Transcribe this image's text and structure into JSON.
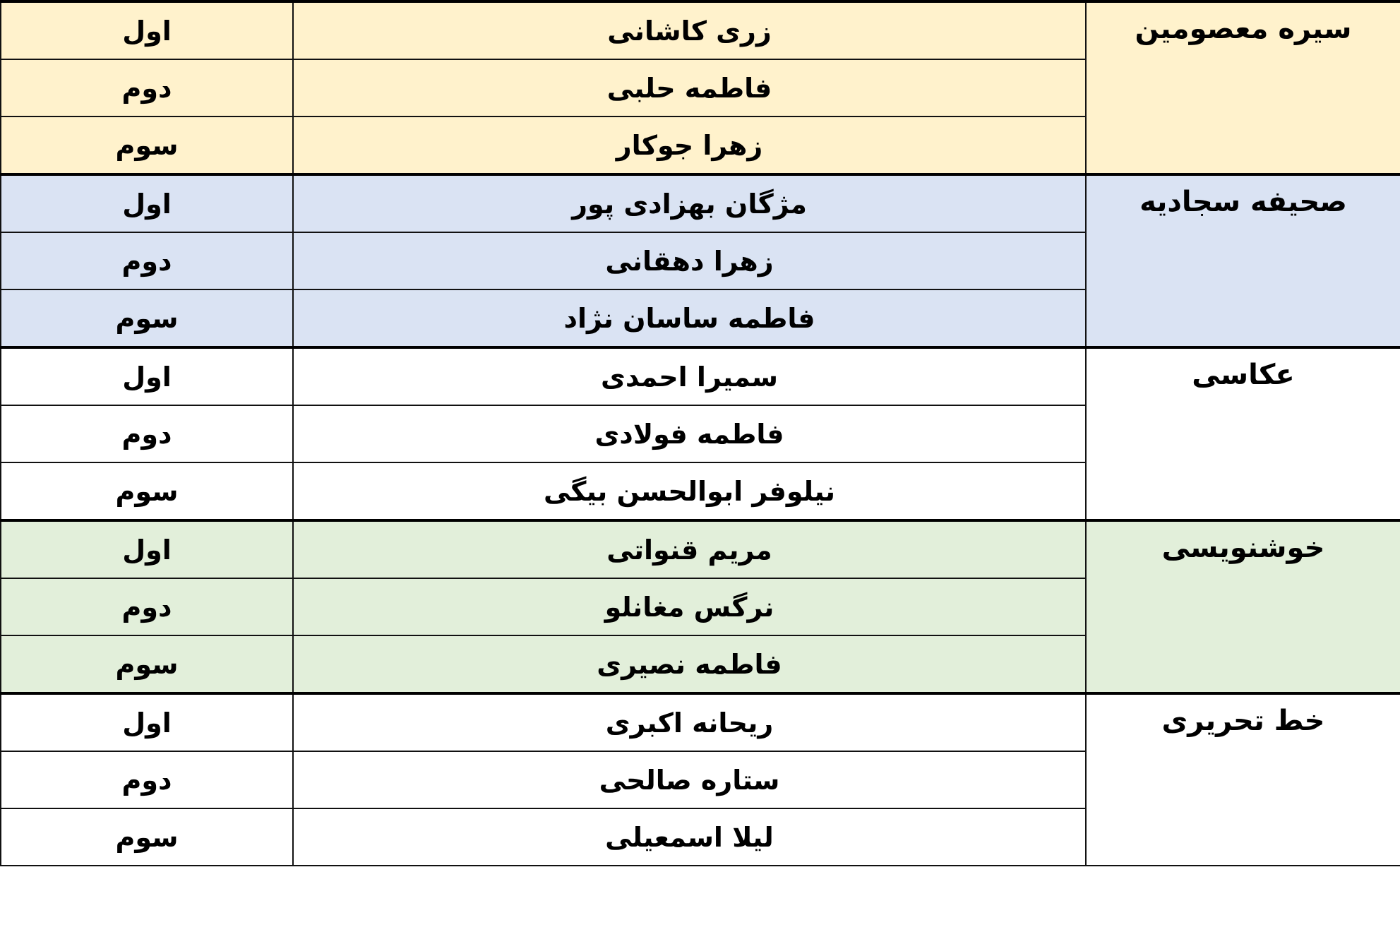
{
  "groups": [
    {
      "category": "سیره معصومین",
      "color": "#fff2cc",
      "rows": [
        {
          "name": "زری کاشانی",
          "rank": "اول"
        },
        {
          "name": "فاطمه حلبی",
          "rank": "دوم"
        },
        {
          "name": "زهرا جوکار",
          "rank": "سوم"
        }
      ]
    },
    {
      "category": "صحیفه سجادیه",
      "color": "#dae3f3",
      "rows": [
        {
          "name": "مژگان بهزادی پور",
          "rank": "اول"
        },
        {
          "name": "زهرا دهقانی",
          "rank": "دوم"
        },
        {
          "name": "فاطمه ساسان نژاد",
          "rank": "سوم"
        }
      ]
    },
    {
      "category": "عکاسی",
      "color": "#ffffff",
      "rows": [
        {
          "name": "سمیرا احمدی",
          "rank": "اول"
        },
        {
          "name": "فاطمه فولادی",
          "rank": "دوم"
        },
        {
          "name": "نیلوفر ابوالحسن بیگی",
          "rank": "سوم"
        }
      ]
    },
    {
      "category": "خوشنویسی",
      "color": "#e2efda",
      "rows": [
        {
          "name": "مریم قنواتی",
          "rank": "اول"
        },
        {
          "name": "نرگس مغانلو",
          "rank": "دوم"
        },
        {
          "name": "فاطمه نصیری",
          "rank": "سوم"
        }
      ]
    },
    {
      "category": "خط تحریری",
      "color": "#ffffff",
      "rows": [
        {
          "name": "ریحانه اکبری",
          "rank": "اول"
        },
        {
          "name": "ستاره صالحی",
          "rank": "دوم"
        },
        {
          "name": "لیلا اسمعیلی",
          "rank": "سوم"
        }
      ]
    }
  ]
}
